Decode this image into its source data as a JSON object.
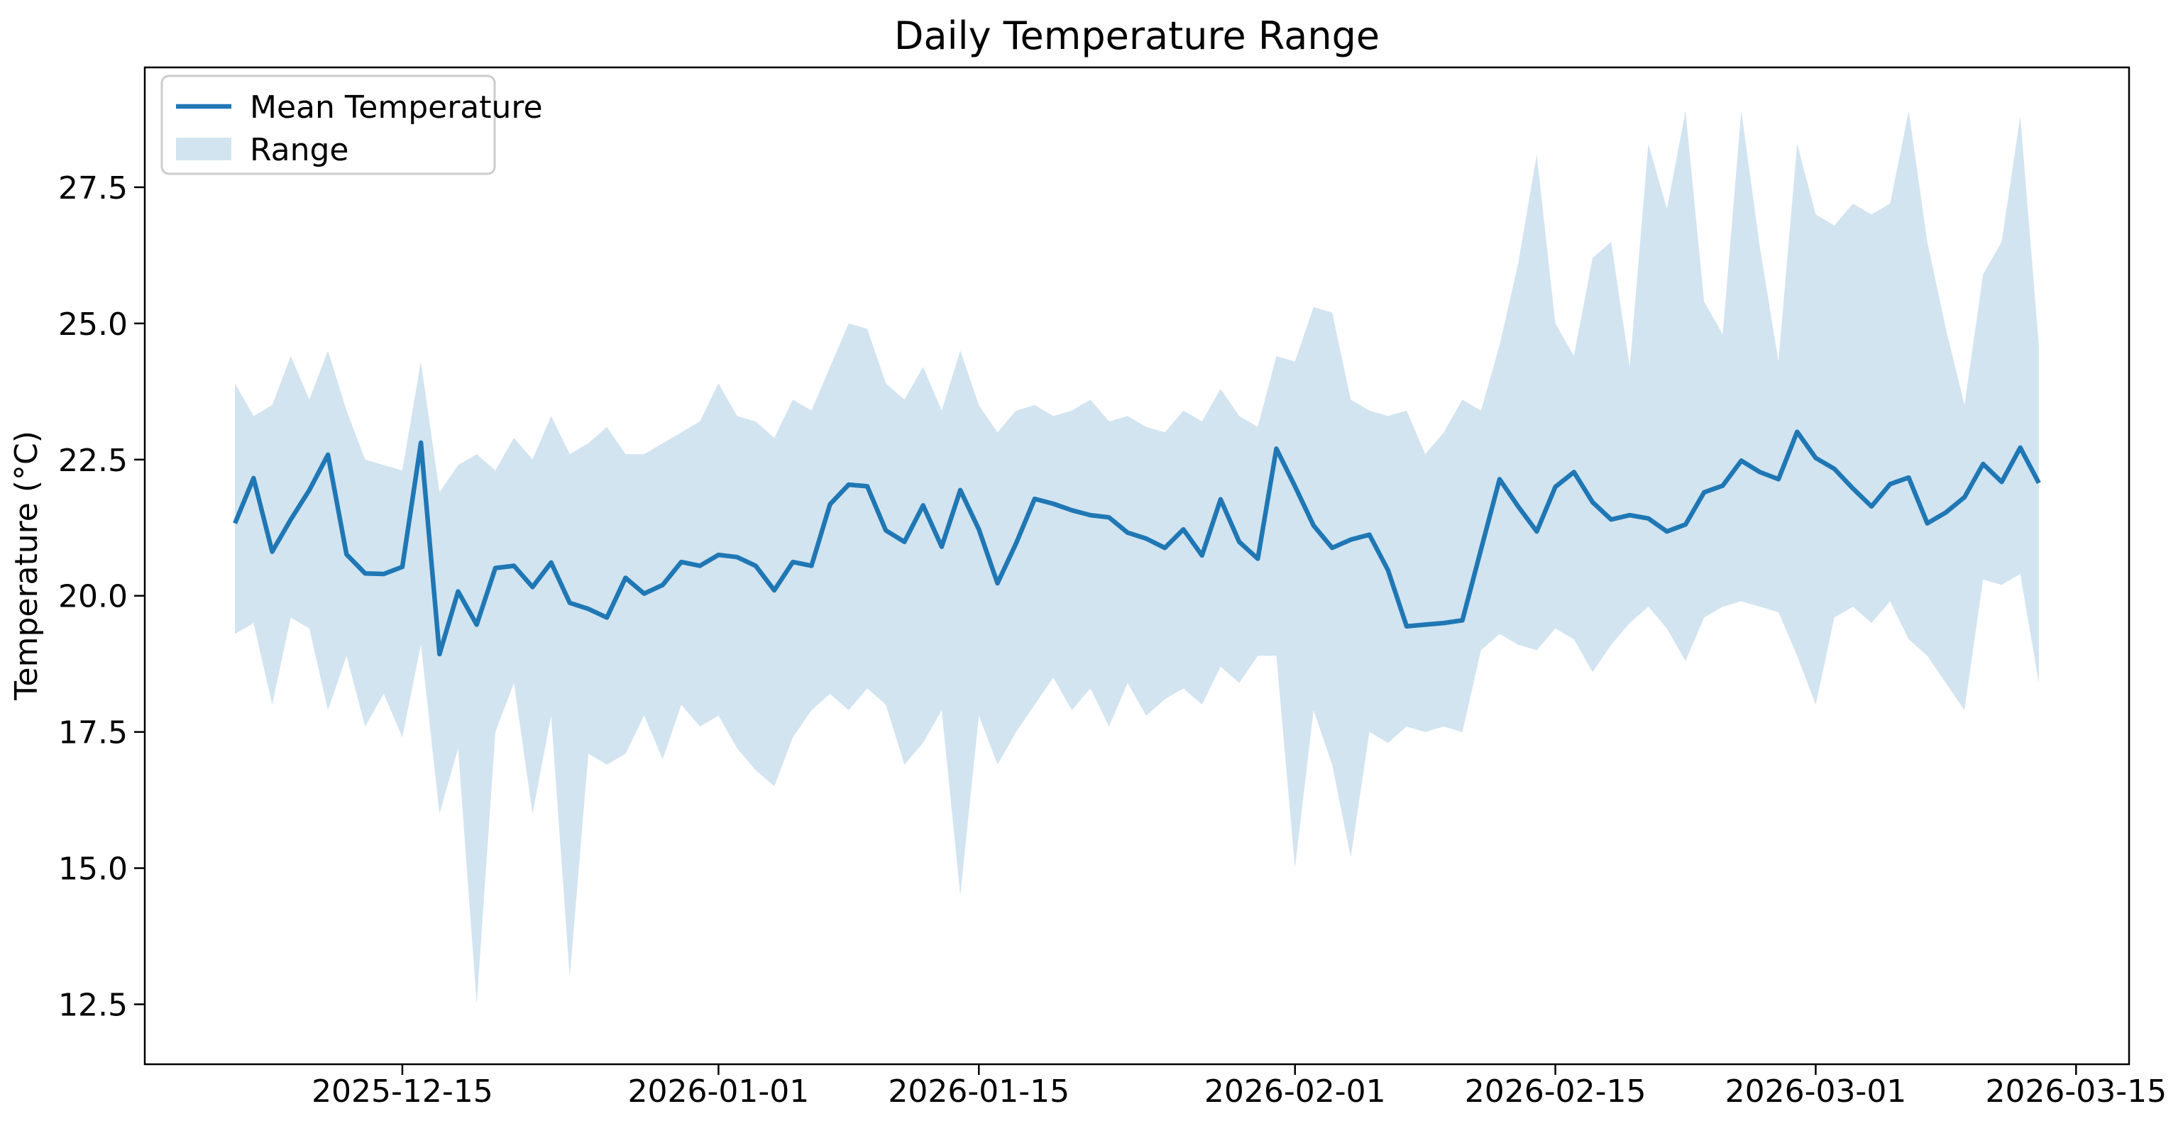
{
  "figure": {
    "title": "Daily Temperature Range"
  },
  "axes": {
    "ylabel": "Temperature (°C)",
    "xlabel": ""
  },
  "legend": {
    "position": "upper left",
    "items": [
      {
        "label": "Mean Temperature",
        "swatch": "line",
        "color": "#1f77b4"
      },
      {
        "label": "Range",
        "swatch": "patch",
        "color": "#d2e4f0"
      }
    ]
  },
  "chart_data": {
    "type": "line",
    "title": "Daily Temperature Range",
    "xlabel": "",
    "ylabel": "Temperature (°C)",
    "grid": false,
    "legend_position": "upper left",
    "line_color": "#1f77b4",
    "band_color": "#d2e4f0",
    "ylim": [
      11.4,
      29.7
    ],
    "xlim_margin_days": 4.85,
    "y_ticks": [
      12.5,
      15.0,
      17.5,
      20.0,
      22.5,
      25.0,
      27.5
    ],
    "x_ticks": [
      "2025-12-15",
      "2026-01-01",
      "2026-01-15",
      "2026-02-01",
      "2026-02-15",
      "2026-03-01",
      "2026-03-15"
    ],
    "x": [
      "2025-12-06",
      "2025-12-07",
      "2025-12-08",
      "2025-12-09",
      "2025-12-10",
      "2025-12-11",
      "2025-12-12",
      "2025-12-13",
      "2025-12-14",
      "2025-12-15",
      "2025-12-16",
      "2025-12-17",
      "2025-12-18",
      "2025-12-19",
      "2025-12-20",
      "2025-12-21",
      "2025-12-22",
      "2025-12-23",
      "2025-12-24",
      "2025-12-25",
      "2025-12-26",
      "2025-12-27",
      "2025-12-28",
      "2025-12-29",
      "2025-12-30",
      "2025-12-31",
      "2026-01-01",
      "2026-01-02",
      "2026-01-03",
      "2026-01-04",
      "2026-01-05",
      "2026-01-06",
      "2026-01-07",
      "2026-01-08",
      "2026-01-09",
      "2026-01-10",
      "2026-01-11",
      "2026-01-12",
      "2026-01-13",
      "2026-01-14",
      "2026-01-15",
      "2026-01-16",
      "2026-01-17",
      "2026-01-18",
      "2026-01-19",
      "2026-01-20",
      "2026-01-21",
      "2026-01-22",
      "2026-01-23",
      "2026-01-24",
      "2026-01-25",
      "2026-01-26",
      "2026-01-27",
      "2026-01-28",
      "2026-01-29",
      "2026-01-30",
      "2026-01-31",
      "2026-02-01",
      "2026-02-02",
      "2026-02-03",
      "2026-02-04",
      "2026-02-05",
      "2026-02-06",
      "2026-02-07",
      "2026-02-08",
      "2026-02-09",
      "2026-02-10",
      "2026-02-11",
      "2026-02-12",
      "2026-02-13",
      "2026-02-14",
      "2026-02-15",
      "2026-02-16",
      "2026-02-17",
      "2026-02-18",
      "2026-02-19",
      "2026-02-20",
      "2026-02-21",
      "2026-02-22",
      "2026-02-23",
      "2026-02-24",
      "2026-02-25",
      "2026-02-26",
      "2026-02-27",
      "2026-02-28",
      "2026-03-01",
      "2026-03-02",
      "2026-03-03",
      "2026-03-04",
      "2026-03-05",
      "2026-03-06",
      "2026-03-07",
      "2026-03-08",
      "2026-03-09",
      "2026-03-10",
      "2026-03-11",
      "2026-03-12",
      "2026-03-13"
    ],
    "series": [
      {
        "name": "Mean Temperature",
        "role": "mean-line",
        "color": "#1f77b4",
        "values": [
          21.33,
          22.16,
          20.81,
          21.4,
          21.94,
          22.59,
          20.76,
          20.41,
          20.4,
          20.53,
          22.81,
          18.93,
          20.08,
          19.47,
          20.51,
          20.55,
          20.16,
          20.61,
          19.87,
          19.76,
          19.6,
          20.33,
          20.04,
          20.2,
          20.62,
          20.55,
          20.75,
          20.71,
          20.55,
          20.1,
          20.62,
          20.55,
          21.68,
          22.04,
          22.01,
          21.2,
          20.99,
          21.66,
          20.9,
          21.94,
          21.22,
          20.23,
          20.96,
          21.78,
          21.69,
          21.57,
          21.48,
          21.44,
          21.16,
          21.05,
          20.88,
          21.22,
          20.74,
          21.77,
          20.99,
          20.68,
          22.7,
          22.01,
          21.29,
          20.88,
          21.03,
          21.12,
          20.47,
          19.44,
          19.47,
          19.5,
          19.55,
          20.85,
          22.14,
          21.64,
          21.18,
          22.0,
          22.27,
          21.72,
          21.4,
          21.48,
          21.42,
          21.18,
          21.31,
          21.9,
          22.02,
          22.48,
          22.27,
          22.14,
          23.01,
          22.53,
          22.33,
          21.97,
          21.64,
          22.05,
          22.17,
          21.33,
          21.53,
          21.81,
          22.42,
          22.09,
          22.72,
          22.07
        ]
      },
      {
        "name": "Range (min)",
        "role": "band-lower",
        "color": "#d2e4f0",
        "values": [
          19.3,
          19.5,
          18.0,
          19.6,
          19.4,
          17.9,
          18.9,
          17.6,
          18.2,
          17.4,
          19.1,
          16.0,
          17.2,
          12.5,
          17.5,
          18.4,
          16.0,
          17.8,
          13.0,
          17.1,
          16.9,
          17.1,
          17.8,
          17.0,
          18.0,
          17.6,
          17.8,
          17.2,
          16.8,
          16.5,
          17.4,
          17.9,
          18.2,
          17.9,
          18.3,
          18.0,
          16.9,
          17.3,
          17.9,
          14.5,
          17.8,
          16.9,
          17.5,
          18.0,
          18.5,
          17.9,
          18.3,
          17.6,
          18.4,
          17.8,
          18.1,
          18.3,
          18.0,
          18.7,
          18.4,
          18.9,
          18.9,
          15.0,
          17.9,
          16.9,
          15.2,
          17.5,
          17.3,
          17.6,
          17.5,
          17.6,
          17.5,
          19.0,
          19.3,
          19.1,
          19.0,
          19.4,
          19.2,
          18.6,
          19.1,
          19.5,
          19.8,
          19.4,
          18.8,
          19.6,
          19.8,
          19.9,
          19.8,
          19.7,
          18.9,
          18.0,
          19.6,
          19.8,
          19.5,
          19.9,
          19.2,
          18.9,
          18.4,
          17.9,
          20.3,
          20.2,
          20.4,
          18.4
        ]
      },
      {
        "name": "Range (max)",
        "role": "band-upper",
        "color": "#d2e4f0",
        "values": [
          23.9,
          23.3,
          23.5,
          24.4,
          23.6,
          24.5,
          23.4,
          22.5,
          22.4,
          22.3,
          24.3,
          21.9,
          22.4,
          22.6,
          22.3,
          22.9,
          22.5,
          23.3,
          22.6,
          22.8,
          23.1,
          22.6,
          22.6,
          22.8,
          23.0,
          23.2,
          23.9,
          23.3,
          23.2,
          22.9,
          23.6,
          23.4,
          24.2,
          25.0,
          24.9,
          23.9,
          23.6,
          24.2,
          23.4,
          24.5,
          23.5,
          23.0,
          23.4,
          23.5,
          23.3,
          23.4,
          23.6,
          23.2,
          23.3,
          23.1,
          23.0,
          23.4,
          23.2,
          23.8,
          23.3,
          23.1,
          24.4,
          24.3,
          25.3,
          25.2,
          23.6,
          23.4,
          23.3,
          23.4,
          22.6,
          23.0,
          23.6,
          23.4,
          24.6,
          26.1,
          28.1,
          25.0,
          24.4,
          26.2,
          26.5,
          24.2,
          28.3,
          27.1,
          28.9,
          25.4,
          24.8,
          28.9,
          26.4,
          24.3,
          28.3,
          27.0,
          26.8,
          27.2,
          27.0,
          27.2,
          28.9,
          26.5,
          24.9,
          23.5,
          25.9,
          26.5,
          28.8,
          24.6
        ]
      }
    ]
  }
}
